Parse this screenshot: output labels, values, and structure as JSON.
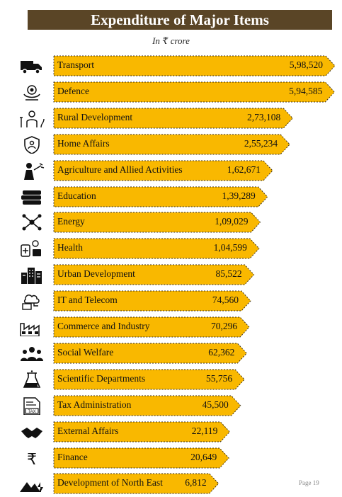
{
  "header": {
    "title": "Expenditure of Major Items",
    "unit": "In ₹ crore"
  },
  "footer": {
    "page": "Page 19"
  },
  "colors": {
    "bar": "#f9b800",
    "bar_border": "#3a2e14",
    "title_bg": "#5a4526"
  },
  "items": [
    {
      "label": "Transport",
      "value_text": "5,98,520",
      "icon": "truck-icon"
    },
    {
      "label": "Defence",
      "value_text": "5,94,585",
      "icon": "defence-emblem-icon"
    },
    {
      "label": "Rural Development",
      "value_text": "2,73,108",
      "icon": "farmer-icon"
    },
    {
      "label": "Home Affairs",
      "value_text": "2,55,234",
      "icon": "police-shield-icon"
    },
    {
      "label": "Agriculture and Allied Activities",
      "value_text": "1,62,671",
      "icon": "farmer-spraying-icon"
    },
    {
      "label": "Education",
      "value_text": "1,39,289",
      "icon": "books-icon"
    },
    {
      "label": "Energy",
      "value_text": "1,09,029",
      "icon": "network-icon"
    },
    {
      "label": "Health",
      "value_text": "1,04,599",
      "icon": "medicine-icon"
    },
    {
      "label": "Urban Development",
      "value_text": "85,522",
      "icon": "buildings-icon"
    },
    {
      "label": "IT and Telecom",
      "value_text": "74,560",
      "icon": "cloud-computer-icon"
    },
    {
      "label": "Commerce and Industry",
      "value_text": "70,296",
      "icon": "factory-icon"
    },
    {
      "label": "Social Welfare",
      "value_text": "62,362",
      "icon": "people-group-icon"
    },
    {
      "label": "Scientific Departments",
      "value_text": "55,756",
      "icon": "beaker-icon"
    },
    {
      "label": "Tax Administration",
      "value_text": "45,500",
      "icon": "tax-document-icon"
    },
    {
      "label": "External Affairs",
      "value_text": "22,119",
      "icon": "handshake-icon"
    },
    {
      "label": "Finance",
      "value_text": "20,649",
      "icon": "rupee-icon"
    },
    {
      "label": "Development of North East",
      "value_text": "6,812",
      "icon": "mountains-icon"
    }
  ],
  "chart_data": {
    "type": "bar",
    "orientation": "horizontal",
    "title": "Expenditure of Major Items",
    "subtitle": "In ₹ crore",
    "categories": [
      "Transport",
      "Defence",
      "Rural Development",
      "Home Affairs",
      "Agriculture and Allied Activities",
      "Education",
      "Energy",
      "Health",
      "Urban Development",
      "IT and Telecom",
      "Commerce and Industry",
      "Social Welfare",
      "Scientific Departments",
      "Tax Administration",
      "External Affairs",
      "Finance",
      "Development of North East"
    ],
    "values": [
      598520,
      594585,
      273108,
      255234,
      162671,
      139289,
      109029,
      104599,
      85522,
      74560,
      70296,
      62362,
      55756,
      45500,
      22119,
      20649,
      6812
    ],
    "data_labels": [
      "5,98,520",
      "5,94,585",
      "2,73,108",
      "2,55,234",
      "1,62,671",
      "1,39,289",
      "1,09,029",
      "1,04,599",
      "85,522",
      "74,560",
      "70,296",
      "62,362",
      "55,756",
      "45,500",
      "22,119",
      "20,649",
      "6,812"
    ]
  }
}
